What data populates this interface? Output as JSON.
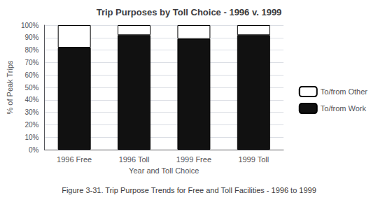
{
  "chart_data": {
    "type": "bar",
    "title": "Trip Purposes by Toll Choice - 1996 v. 1999",
    "xlabel": "Year and Toll Choice",
    "ylabel": "% of Peak Trips",
    "caption": "Figure 3-31. Trip Purpose Trends for Free and Toll Facilities - 1996 to 1999",
    "categories": [
      "1996 Free",
      "1996 Toll",
      "1999 Free",
      "1999 Toll"
    ],
    "series": [
      {
        "name": "To/from Work",
        "color": "#111111",
        "values": [
          0.82,
          0.92,
          0.89,
          0.92
        ]
      },
      {
        "name": "To/from Other",
        "color": "#ffffff",
        "values": [
          0.18,
          0.08,
          0.11,
          0.08
        ]
      }
    ],
    "stacked": true,
    "ylim": [
      0,
      1.0
    ],
    "yticks": [
      {
        "value": 0.0,
        "label": "0%"
      },
      {
        "value": 0.1,
        "label": "10%"
      },
      {
        "value": 0.2,
        "label": "20%"
      },
      {
        "value": 0.3,
        "label": "30%"
      },
      {
        "value": 0.4,
        "label": "40%"
      },
      {
        "value": 0.5,
        "label": "50%"
      },
      {
        "value": 0.6,
        "label": "60%"
      },
      {
        "value": 0.7,
        "label": "70%"
      },
      {
        "value": 0.8,
        "label": "80%"
      },
      {
        "value": 0.9,
        "label": "90%"
      },
      {
        "value": 1.0,
        "label": "100%"
      }
    ],
    "grid": true,
    "legend": "right"
  }
}
